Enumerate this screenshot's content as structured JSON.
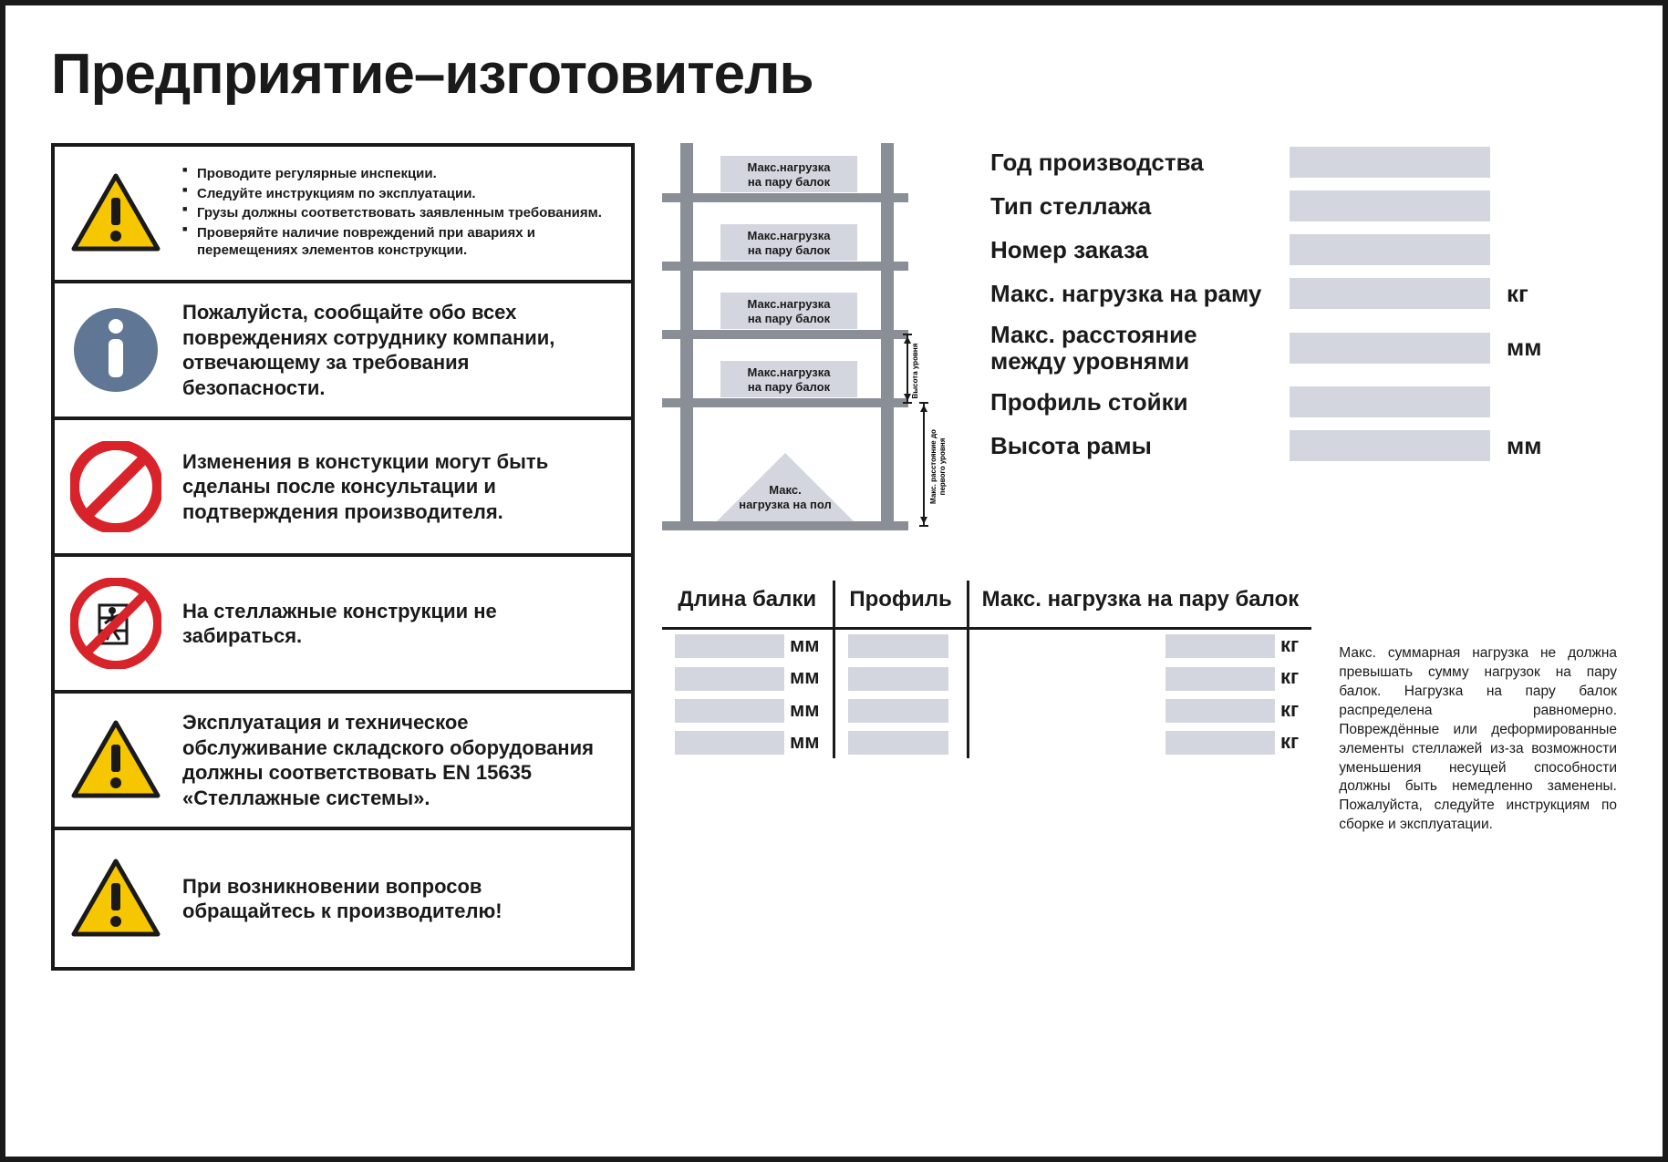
{
  "title": "Предприятие–изготовитель",
  "colors": {
    "border": "#1a1a1a",
    "field_bg": "#d3d6de",
    "warn_yellow": "#f6c600",
    "info_blue": "#5f7694",
    "prohibit_red": "#d8232a",
    "rack_grey": "#8a8e97",
    "rack_panel": "#d3d6de"
  },
  "safety": [
    {
      "icon": "warning-triangle",
      "bullets": [
        "Проводите регулярные инспекции.",
        "Следуйте инструкциям по эксплуатации.",
        "Грузы должны соответствовать заявленным требованиям.",
        "Проверяйте наличие повреждений при авариях и перемещениях элементов конструкции."
      ]
    },
    {
      "icon": "info-circle",
      "text": "Пожалуйста, сообщайте обо всех повреждениях сотруднику компании, отвечающему за требования безопасности."
    },
    {
      "icon": "prohibit",
      "text": "Изменения в констукции могут быть сделаны после консультации и подтверждения производителя."
    },
    {
      "icon": "no-climb",
      "text": "На стеллажные конструкции не забираться."
    },
    {
      "icon": "warning-triangle",
      "text": "Эксплуатация и техническое обслуживание складского оборудования должны соответствовать EN 15635 «Стеллажные системы»."
    },
    {
      "icon": "warning-triangle",
      "text": "При возникновении вопросов обращайтесь к производителю!"
    }
  ],
  "rack_diagram": {
    "beam_label": "Макс.нагрузка на пару балок",
    "floor_label": "Макс. нагрузка на пол",
    "height_label": "Высота уровня",
    "spacing_label": "Макс. расстояние до первого уровня"
  },
  "spec_fields": [
    {
      "label": "Год производства",
      "unit": ""
    },
    {
      "label": "Тип стеллажа",
      "unit": ""
    },
    {
      "label": "Номер заказа",
      "unit": ""
    },
    {
      "label": "Макс. нагрузка на раму",
      "unit": "кг"
    },
    {
      "label": "Макс. расстояние между уровнями",
      "unit": "мм"
    },
    {
      "label": "Профиль стойки",
      "unit": ""
    },
    {
      "label": "Высота рамы",
      "unit": "мм"
    }
  ],
  "beam_table": {
    "headers": [
      "Длина балки",
      "Профиль",
      "Макс. нагрузка на пару балок"
    ],
    "row_count": 4,
    "unit_length": "мм",
    "unit_load": "кг"
  },
  "footnote": "Макс. суммарная нагрузка не должна превышать сумму нагрузок на пару балок. Нагрузка на пару балок распределена равномерно. Повреждённые или деформированные элементы стеллажей из-за возможности уменьшения несущей способности должны быть немедленно заменены. Пожалуйста, следуйте инструкциям по сборке и эксплуатации."
}
